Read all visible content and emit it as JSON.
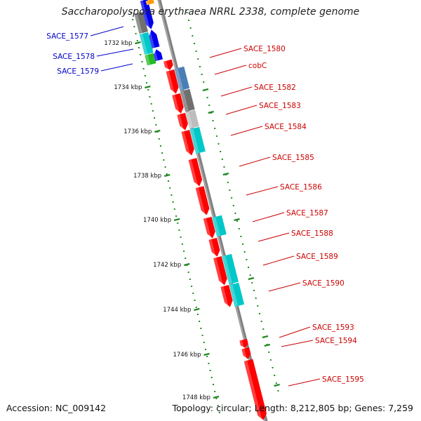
{
  "map": {
    "title": "Saccharopolyspora erythraea NRRL 2338, complete genome",
    "accession_text": "Accession: NC_009142",
    "summary_text": "Topology: circular; Length: 8,212,805 bp; Genes: 7,259",
    "tick_labels": [
      "1732 kbp",
      "1734 kbp",
      "1736 kbp",
      "1738 kbp",
      "1740 kbp",
      "1742 kbp",
      "1744 kbp",
      "1746 kbp",
      "1748 kbp"
    ],
    "colors": {
      "forward_label": "#0000cc",
      "reverse_label": "#cc0000",
      "backbone": "#808080",
      "tick": "#228822",
      "cds_red": "#ff0000",
      "cds_blue": "#0000ee",
      "cds_cyan": "#00c8c8",
      "cds_green": "#22bb22",
      "cds_gray": "#707070",
      "cds_lightgray": "#bdbdbd",
      "cds_steelblue": "#4a7fb5",
      "cds_orange": "#ff9900"
    },
    "left_gene_labels": [
      {
        "name": "SACE_1577"
      },
      {
        "name": "SACE_1578"
      },
      {
        "name": "SACE_1579"
      }
    ],
    "right_gene_labels": [
      {
        "name": "SACE_1580"
      },
      {
        "name": "cobC"
      },
      {
        "name": "SACE_1582"
      },
      {
        "name": "SACE_1583"
      },
      {
        "name": "SACE_1584"
      },
      {
        "name": "SACE_1585"
      },
      {
        "name": "SACE_1586"
      },
      {
        "name": "SACE_1587"
      },
      {
        "name": "SACE_1588"
      },
      {
        "name": "SACE_1589"
      },
      {
        "name": "SACE_1590"
      },
      {
        "name": "SACE_1593"
      },
      {
        "name": "SACE_1594"
      },
      {
        "name": "SACE_1595"
      }
    ]
  }
}
